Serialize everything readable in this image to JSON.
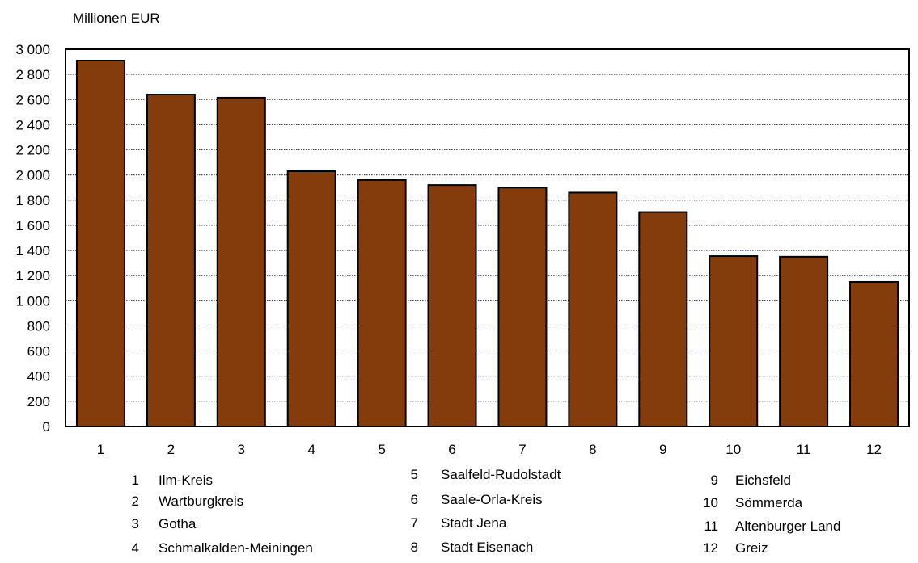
{
  "chart_data": {
    "type": "bar",
    "ylabel": "Millionen EUR",
    "ylim": [
      0,
      3000
    ],
    "yticks": [
      "0",
      "200",
      "400",
      "600",
      "800",
      "1 000",
      "1 200",
      "1 400",
      "1 600",
      "1 800",
      "2 000",
      "2 200",
      "2 400",
      "2 600",
      "2 800",
      "3 000"
    ],
    "categories": [
      "1",
      "2",
      "3",
      "4",
      "5",
      "6",
      "7",
      "8",
      "9",
      "10",
      "11",
      "12"
    ],
    "values": [
      2910,
      2640,
      2615,
      2030,
      1960,
      1920,
      1900,
      1860,
      1705,
      1355,
      1350,
      1150
    ],
    "grid": true,
    "bar_color": "#843c0c",
    "legend": [
      {
        "num": "1",
        "name": "Ilm-Kreis"
      },
      {
        "num": "2",
        "name": "Wartburgkreis"
      },
      {
        "num": "3",
        "name": "Gotha"
      },
      {
        "num": "4",
        "name": "Schmalkalden-Meiningen"
      },
      {
        "num": "5",
        "name": "Saalfeld-Rudolstadt"
      },
      {
        "num": "6",
        "name": "Saale-Orla-Kreis"
      },
      {
        "num": "7",
        "name": "Stadt Jena"
      },
      {
        "num": "8",
        "name": "Stadt Eisenach"
      },
      {
        "num": "9",
        "name": "Eichsfeld"
      },
      {
        "num": "10",
        "name": "Sömmerda"
      },
      {
        "num": "11",
        "name": "Altenburger Land"
      },
      {
        "num": "12",
        "name": "Greiz"
      }
    ]
  }
}
